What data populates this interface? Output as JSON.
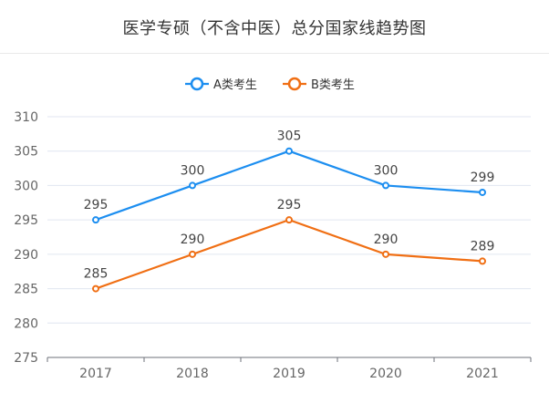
{
  "chart_data": {
    "type": "line",
    "title": "医学专硕（不含中医）总分国家线趋势图",
    "categories": [
      "2017",
      "2018",
      "2019",
      "2020",
      "2021"
    ],
    "series": [
      {
        "name": "A类考生",
        "color": "#1c8ef0",
        "values": [
          295,
          300,
          305,
          300,
          299
        ]
      },
      {
        "name": "B类考生",
        "color": "#f06f14",
        "values": [
          285,
          290,
          295,
          290,
          289
        ]
      }
    ],
    "ylim": [
      275,
      310
    ],
    "yticks": [
      "275",
      "280",
      "285",
      "290",
      "295",
      "300",
      "305",
      "310"
    ],
    "grid": true,
    "legend": "top-center",
    "xlabel": "",
    "ylabel": ""
  }
}
